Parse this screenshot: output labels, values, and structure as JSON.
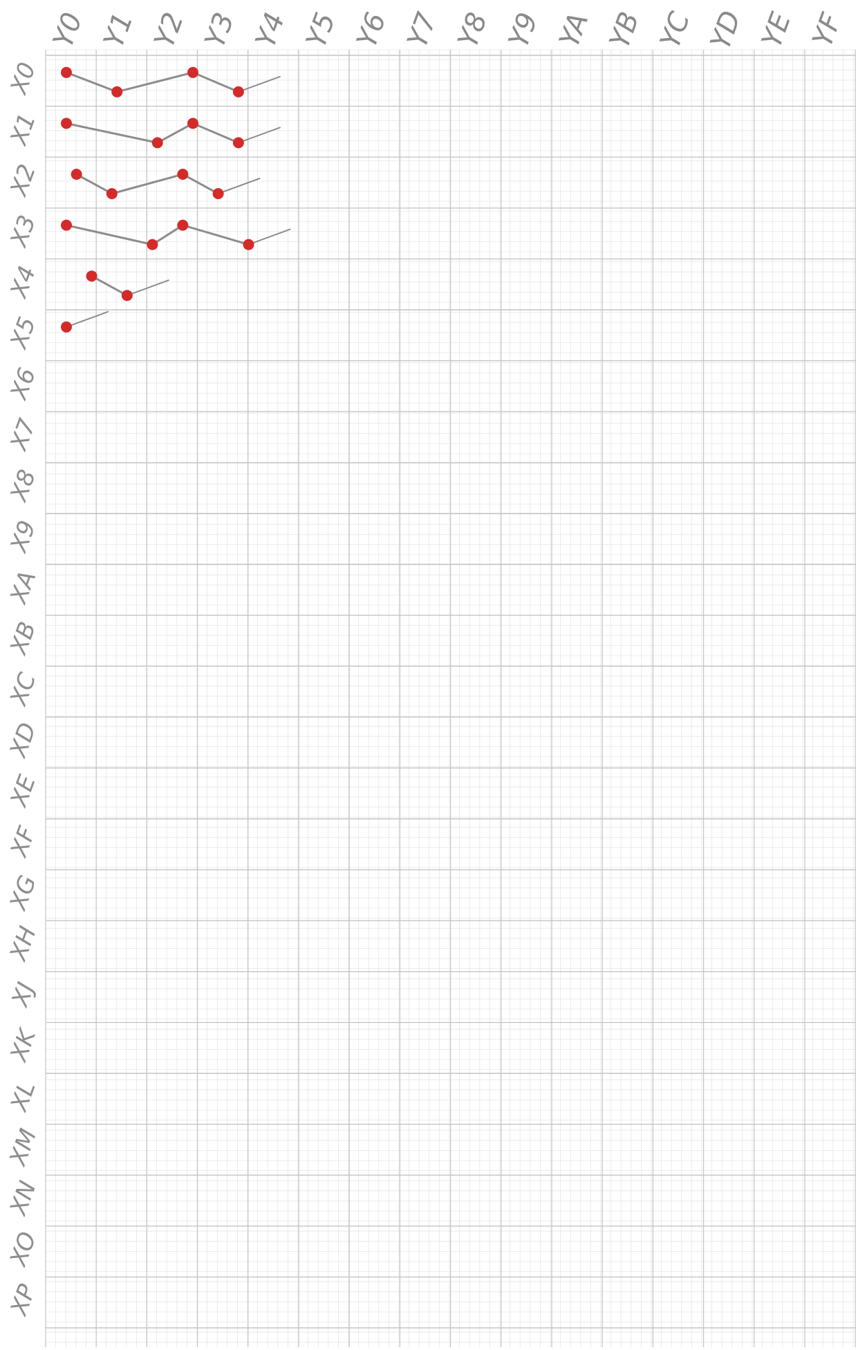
{
  "sheet": {
    "column_labels": [
      "Y0",
      "Y1",
      "Y2",
      "Y3",
      "Y4",
      "Y5",
      "Y6",
      "Y7",
      "Y8",
      "Y9",
      "YA",
      "YB",
      "YC",
      "YD",
      "YE",
      "YF"
    ],
    "row_labels": [
      "X0",
      "X1",
      "X2",
      "X3",
      "X4",
      "X5",
      "X6",
      "X7",
      "X8",
      "X9",
      "XA",
      "XB",
      "XC",
      "XD",
      "XE",
      "XF",
      "XG",
      "XH",
      "XJ",
      "XK",
      "XL",
      "XM",
      "XN",
      "XO",
      "XP"
    ],
    "colors": {
      "grid_major": "#c4c4c4",
      "grid_minor": "#e6e6e6",
      "pencil": "#8c8c8c",
      "dot": "#d42a2a"
    },
    "traced_paths": [
      {
        "row": "X0",
        "cells": [
          0,
          1,
          2.5,
          3.4
        ],
        "dots": 4
      },
      {
        "row": "X1",
        "cells": [
          0,
          1.8,
          2.5,
          3.4
        ],
        "dots": 4
      },
      {
        "row": "X2",
        "cells": [
          0.2,
          0.9,
          2.3,
          3.0
        ],
        "dots": 4
      },
      {
        "row": "X3",
        "cells": [
          0,
          1.7,
          2.3,
          3.6
        ],
        "dots": 4
      },
      {
        "row": "X4",
        "cells": [
          0.5,
          1.2
        ],
        "dots": 2
      },
      {
        "row": "X5",
        "cells": [
          0
        ],
        "dots": 1
      }
    ]
  }
}
